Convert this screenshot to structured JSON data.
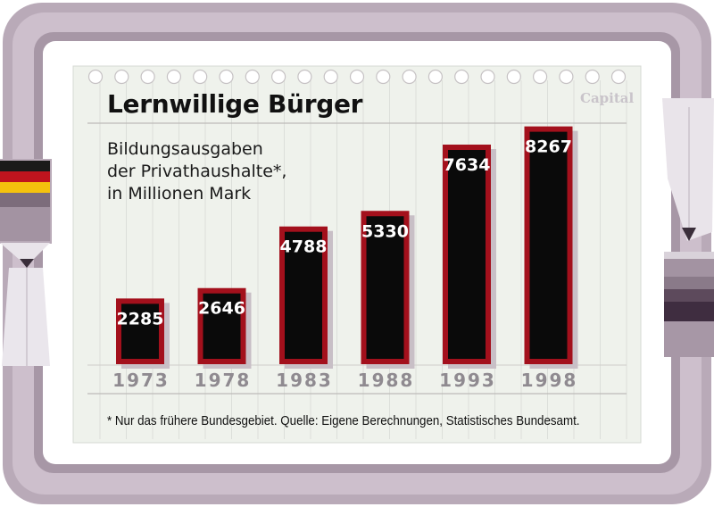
{
  "header": {
    "title": "Lernwillige Bürger",
    "subtitle_lines": [
      "Bildungsausgaben",
      "der Privathaushalte*,",
      "in Millionen Mark"
    ],
    "brand": "Capital"
  },
  "footnote": "* Nur das frühere Bundesgebiet. Quelle: Eigene Berechnungen, Statistisches Bundesamt.",
  "colors": {
    "bar_fill": "#0a0a0a",
    "bar_border": "#a3101c",
    "bar_shadow": "#c8bfc6",
    "year_label": "#8f8a90",
    "frame": "#b9aab8",
    "paper": "#eff2ec",
    "grid": "#dcdfda"
  },
  "chart_data": {
    "type": "bar",
    "title": "Lernwillige Bürger",
    "subtitle": "Bildungsausgaben der Privathaushalte*, in Millionen Mark",
    "categories": [
      "1973",
      "1978",
      "1983",
      "1988",
      "1993",
      "1998"
    ],
    "values": [
      2285,
      2646,
      4788,
      5330,
      7634,
      8267
    ],
    "data_labels": [
      "2285",
      "2646",
      "4788",
      "5330",
      "7634",
      "8267"
    ],
    "ylim": [
      0,
      9000
    ],
    "grid": false,
    "legend": "none"
  }
}
